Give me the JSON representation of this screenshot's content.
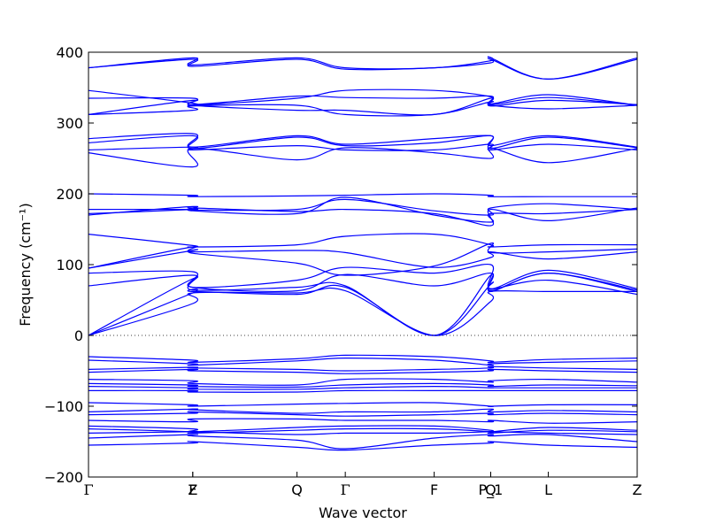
{
  "chart_data": {
    "type": "line",
    "xlabel": "Wave vector",
    "ylabel": "Frequency (cm⁻¹)",
    "ylim": [
      -200,
      400
    ],
    "yticks": [
      -200,
      -100,
      0,
      100,
      200,
      300,
      400
    ],
    "ytick_labels": [
      "−200",
      "−100",
      "0",
      "100",
      "200",
      "300",
      "400"
    ],
    "x_range": [
      0,
      1
    ],
    "kpoints": [
      {
        "label": "Γ",
        "x": 0.0
      },
      {
        "label": "Z",
        "x": 0.19
      },
      {
        "label": "F",
        "x": 0.19
      },
      {
        "label": "Q",
        "x": 0.38
      },
      {
        "label": "Γ",
        "x": 0.468
      },
      {
        "label": "F",
        "x": 0.63
      },
      {
        "label": "P_1",
        "x": 0.733
      },
      {
        "label": "Q",
        "x": 0.733
      },
      {
        "label": "L",
        "x": 0.838
      },
      {
        "label": "Z",
        "x": 1.0
      }
    ],
    "zero_line": {
      "y": 0,
      "style": "dotted"
    },
    "line_color": "#0000ff",
    "series": [
      {
        "values": [
          0,
          45,
          60,
          60,
          63,
          0,
          48,
          62,
          62,
          62
        ]
      },
      {
        "values": [
          0,
          60,
          62,
          58,
          68,
          0,
          72,
          65,
          78,
          58
        ]
      },
      {
        "values": [
          0,
          80,
          64,
          68,
          70,
          0,
          85,
          62,
          88,
          62
        ]
      },
      {
        "values": [
          70,
          85,
          68,
          63,
          86,
          70,
          88,
          63,
          88,
          64
        ]
      },
      {
        "values": [
          88,
          90,
          68,
          78,
          96,
          88,
          100,
          66,
          92,
          66
        ]
      },
      {
        "values": [
          95,
          120,
          118,
          120,
          117,
          96,
          110,
          118,
          108,
          118
        ]
      },
      {
        "values": [
          95,
          125,
          116,
          102,
          85,
          98,
          130,
          117,
          118,
          122
        ]
      },
      {
        "values": [
          143,
          127,
          125,
          128,
          140,
          143,
          128,
          125,
          128,
          128
        ]
      },
      {
        "values": [
          170,
          182,
          176,
          172,
          195,
          170,
          160,
          172,
          172,
          178
        ]
      },
      {
        "values": [
          172,
          178,
          180,
          175,
          178,
          172,
          155,
          178,
          162,
          180
        ]
      },
      {
        "values": [
          178,
          178,
          177,
          178,
          192,
          176,
          170,
          180,
          186,
          178
        ]
      },
      {
        "values": [
          200,
          198,
          196,
          197,
          198,
          200,
          198,
          196,
          196,
          196
        ]
      },
      {
        "values": [
          258,
          238,
          264,
          248,
          265,
          258,
          250,
          265,
          244,
          264
        ]
      },
      {
        "values": [
          262,
          266,
          262,
          268,
          262,
          262,
          270,
          262,
          270,
          262
        ]
      },
      {
        "values": [
          272,
          282,
          264,
          280,
          268,
          272,
          282,
          264,
          280,
          265
        ]
      },
      {
        "values": [
          278,
          285,
          266,
          282,
          270,
          278,
          282,
          268,
          282,
          266
        ]
      },
      {
        "values": [
          312,
          318,
          324,
          325,
          312,
          312,
          330,
          325,
          320,
          325
        ]
      },
      {
        "values": [
          312,
          332,
          325,
          318,
          318,
          312,
          335,
          324,
          332,
          326
        ]
      },
      {
        "values": [
          335,
          335,
          326,
          338,
          336,
          335,
          338,
          326,
          336,
          325
        ]
      },
      {
        "values": [
          346,
          328,
          325,
          335,
          346,
          346,
          337,
          327,
          340,
          325
        ]
      },
      {
        "values": [
          378,
          390,
          380,
          390,
          376,
          378,
          385,
          390,
          362,
          392
        ]
      },
      {
        "values": [
          378,
          392,
          382,
          392,
          378,
          378,
          388,
          392,
          362,
          390
        ]
      },
      {
        "values": [
          -30,
          -35,
          -38,
          -33,
          -28,
          -30,
          -36,
          -38,
          -34,
          -32
        ]
      },
      {
        "values": [
          -35,
          -40,
          -42,
          -36,
          -32,
          -35,
          -42,
          -40,
          -38,
          -36
        ]
      },
      {
        "values": [
          -48,
          -45,
          -46,
          -48,
          -50,
          -48,
          -46,
          -44,
          -46,
          -48
        ]
      },
      {
        "values": [
          -52,
          -48,
          -50,
          -52,
          -54,
          -52,
          -50,
          -48,
          -50,
          -52
        ]
      },
      {
        "values": [
          -62,
          -64,
          -68,
          -70,
          -62,
          -62,
          -66,
          -64,
          -62,
          -66
        ]
      },
      {
        "values": [
          -68,
          -70,
          -72,
          -73,
          -70,
          -68,
          -70,
          -72,
          -70,
          -71
        ]
      },
      {
        "values": [
          -72,
          -74,
          -76,
          -76,
          -74,
          -72,
          -74,
          -74,
          -74,
          -74
        ]
      },
      {
        "values": [
          -78,
          -78,
          -80,
          -80,
          -78,
          -78,
          -78,
          -78,
          -78,
          -78
        ]
      },
      {
        "values": [
          -95,
          -98,
          -100,
          -97,
          -96,
          -95,
          -100,
          -100,
          -98,
          -98
        ]
      },
      {
        "values": [
          -108,
          -104,
          -105,
          -110,
          -108,
          -108,
          -104,
          -108,
          -106,
          -108
        ]
      },
      {
        "values": [
          -112,
          -110,
          -108,
          -112,
          -114,
          -112,
          -110,
          -112,
          -110,
          -112
        ]
      },
      {
        "values": [
          -120,
          -122,
          -118,
          -118,
          -120,
          -120,
          -122,
          -120,
          -124,
          -122
        ]
      },
      {
        "values": [
          -128,
          -132,
          -136,
          -130,
          -128,
          -128,
          -134,
          -136,
          -130,
          -134
        ]
      },
      {
        "values": [
          -132,
          -136,
          -138,
          -134,
          -132,
          -132,
          -136,
          -138,
          -134,
          -136
        ]
      },
      {
        "values": [
          -138,
          -136,
          -136,
          -140,
          -138,
          -138,
          -136,
          -136,
          -138,
          -140
        ]
      },
      {
        "values": [
          -145,
          -140,
          -142,
          -148,
          -160,
          -145,
          -140,
          -142,
          -140,
          -150
        ]
      },
      {
        "values": [
          -155,
          -152,
          -150,
          -158,
          -162,
          -155,
          -152,
          -150,
          -155,
          -158
        ]
      }
    ]
  }
}
